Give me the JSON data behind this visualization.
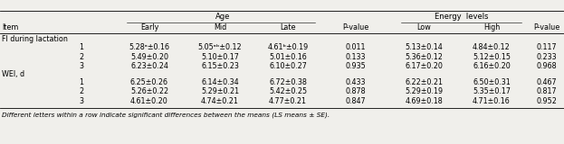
{
  "section1_label": "FI during lactation",
  "section2_label": "WEI, d",
  "footnote": "Different letters within a row indicate significant differences between the means (LS means ± SE).",
  "rows": [
    {
      "section": "FI",
      "item": "1",
      "early": "5.28ᵃ±0.16",
      "mid": "5.05ᵃᵇ±0.12",
      "late": "4.61ᵇ±0.19",
      "pval_age": "0.011",
      "low": "5.13±0.14",
      "high": "4.84±0.12",
      "pval_energy": "0.117"
    },
    {
      "section": "FI",
      "item": "2",
      "early": "5.49±0.20",
      "mid": "5.10±0.17",
      "late": "5.01±0.16",
      "pval_age": "0.133",
      "low": "5.36±0.12",
      "high": "5.12±0.15",
      "pval_energy": "0.233"
    },
    {
      "section": "FI",
      "item": "3",
      "early": "6.23±0.24",
      "mid": "6.15±0.23",
      "late": "6.10±0.27",
      "pval_age": "0.935",
      "low": "6.17±0.20",
      "high": "6.16±0.20",
      "pval_energy": "0.968"
    },
    {
      "section": "WEI",
      "item": "1",
      "early": "6.25±0.26",
      "mid": "6.14±0.34",
      "late": "6.72±0.38",
      "pval_age": "0.433",
      "low": "6.22±0.21",
      "high": "6.50±0.31",
      "pval_energy": "0.467"
    },
    {
      "section": "WEI",
      "item": "2",
      "early": "5.26±0.22",
      "mid": "5.29±0.21",
      "late": "5.42±0.25",
      "pval_age": "0.878",
      "low": "5.29±0.19",
      "high": "5.35±0.17",
      "pval_energy": "0.817"
    },
    {
      "section": "WEI",
      "item": "3",
      "early": "4.61±0.20",
      "mid": "4.74±0.21",
      "late": "4.77±0.21",
      "pval_age": "0.847",
      "low": "4.69±0.18",
      "high": "4.71±0.16",
      "pval_energy": "0.952"
    }
  ],
  "background_color": "#f0efeb",
  "font_size": 5.8,
  "header_font_size": 6.0
}
